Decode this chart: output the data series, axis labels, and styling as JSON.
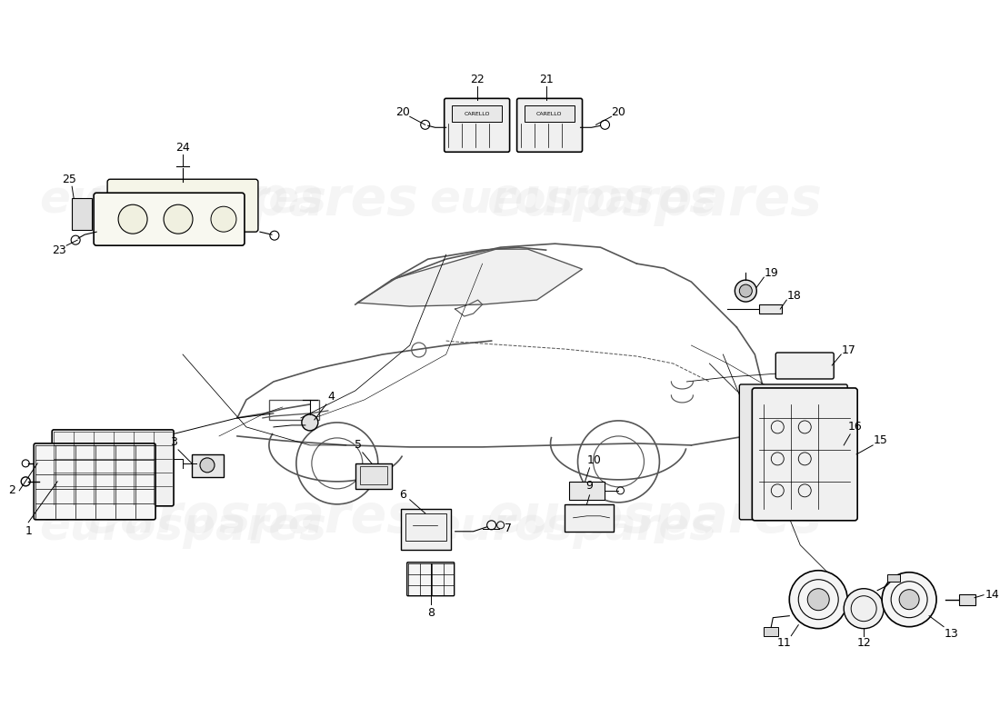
{
  "title": "",
  "background_color": "#ffffff",
  "watermark_text": "eurospares",
  "watermark_color": "#e8e8e8",
  "part_numbers": [
    1,
    2,
    3,
    4,
    5,
    6,
    7,
    8,
    9,
    10,
    11,
    12,
    13,
    14,
    15,
    16,
    17,
    18,
    19,
    20,
    21,
    22,
    23,
    24,
    25
  ],
  "line_color": "#000000",
  "car_color": "#333333",
  "label_fontsize": 9,
  "label_color": "#000000"
}
